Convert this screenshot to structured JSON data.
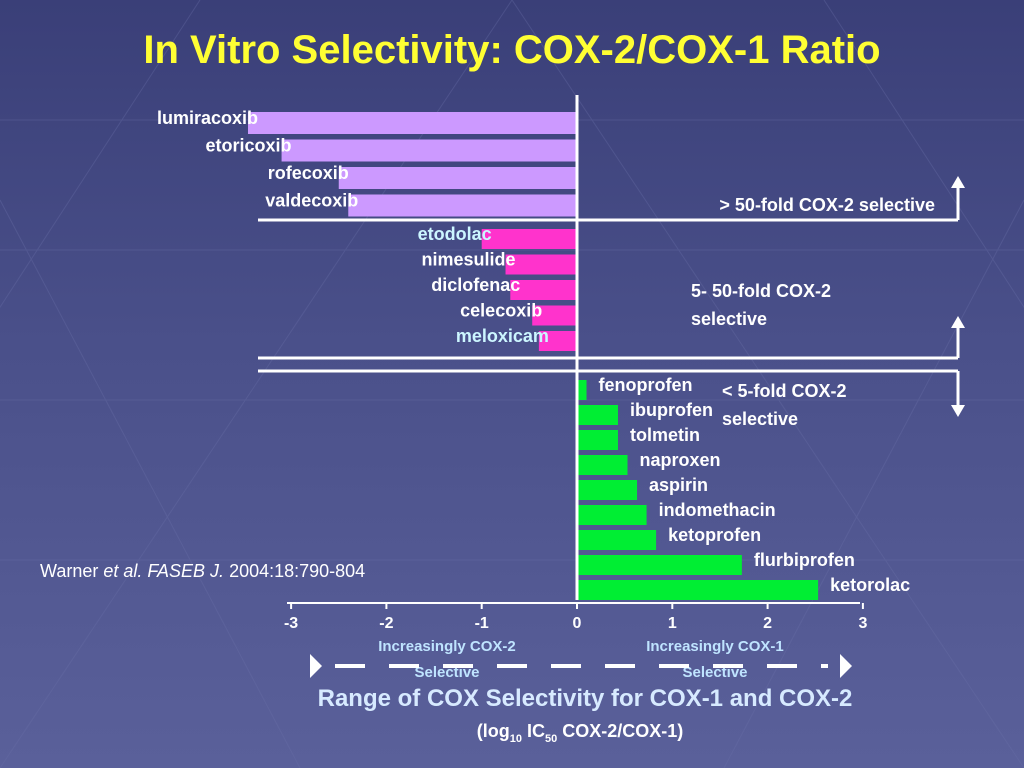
{
  "title": "In Vitro Selectivity: COX-2/COX-1 Ratio",
  "citation": {
    "author": "Warner ",
    "etal": "et al. FASEB J.",
    "ref": " 2004:18:790-804"
  },
  "colors": {
    "coxib": "#cc99ff",
    "moderate": "#ff33cc",
    "nonselective": "#00ee33",
    "axis": "#ffffff"
  },
  "zones": {
    "zone1": "> 50-fold COX-2 selective",
    "zone2_line1": "5- 50-fold COX-2",
    "zone2_line2": "selective",
    "zone3_line1": "< 5-fold COX-2",
    "zone3_line2": "selective"
  },
  "directions": {
    "left_line1": "Increasingly COX-2",
    "left_line2": "Selective",
    "right_line1": "Increasingly COX-1",
    "right_line2": "Selective"
  },
  "footer": {
    "line1": "Range of COX Selectivity for COX-1 and COX-2",
    "line2_pre": "(log",
    "line2_sub1": "10",
    "line2_mid": " IC",
    "line2_sub2": "50",
    "line2_post": " COX-2/COX-1)"
  },
  "chart_data": {
    "type": "bar",
    "orientation": "horizontal",
    "title": "In Vitro Selectivity: COX-2/COX-1 Ratio",
    "xlabel": "Range of COX Selectivity for COX-1 and COX-2 (log10 IC50 COX-2/COX-1)",
    "xlim": [
      -3,
      3
    ],
    "xticks": [
      "-3",
      "-2",
      "-1",
      "0",
      "1",
      "2",
      "3"
    ],
    "series": [
      {
        "name": "> 50-fold COX-2 selective",
        "color": "#cc99ff",
        "items": [
          {
            "label": "lumiracoxib",
            "value": -3.5
          },
          {
            "label": "etoricoxib",
            "value": -3.1
          },
          {
            "label": "rofecoxib",
            "value": -2.5
          },
          {
            "label": "valdecoxib",
            "value": -2.4
          }
        ]
      },
      {
        "name": "5- 50-fold COX-2 selective",
        "color": "#ff33cc",
        "items": [
          {
            "label": "etodolac",
            "value": -1.0
          },
          {
            "label": "nimesulide",
            "value": -0.75
          },
          {
            "label": "diclofenac",
            "value": -0.7
          },
          {
            "label": "celecoxib",
            "value": -0.47
          },
          {
            "label": "meloxicam",
            "value": -0.4
          }
        ]
      },
      {
        "name": "< 5-fold COX-2 selective",
        "color": "#00ee33",
        "items": [
          {
            "label": "fenoprofen",
            "value": 0.1
          },
          {
            "label": "ibuprofen",
            "value": 0.43
          },
          {
            "label": "tolmetin",
            "value": 0.43
          },
          {
            "label": "naproxen",
            "value": 0.53
          },
          {
            "label": "aspirin",
            "value": 0.63
          },
          {
            "label": "indomethacin",
            "value": 0.73
          },
          {
            "label": "ketoprofen",
            "value": 0.83
          },
          {
            "label": "flurbiprofen",
            "value": 1.73
          },
          {
            "label": "ketorolac",
            "value": 2.53
          }
        ]
      }
    ]
  }
}
